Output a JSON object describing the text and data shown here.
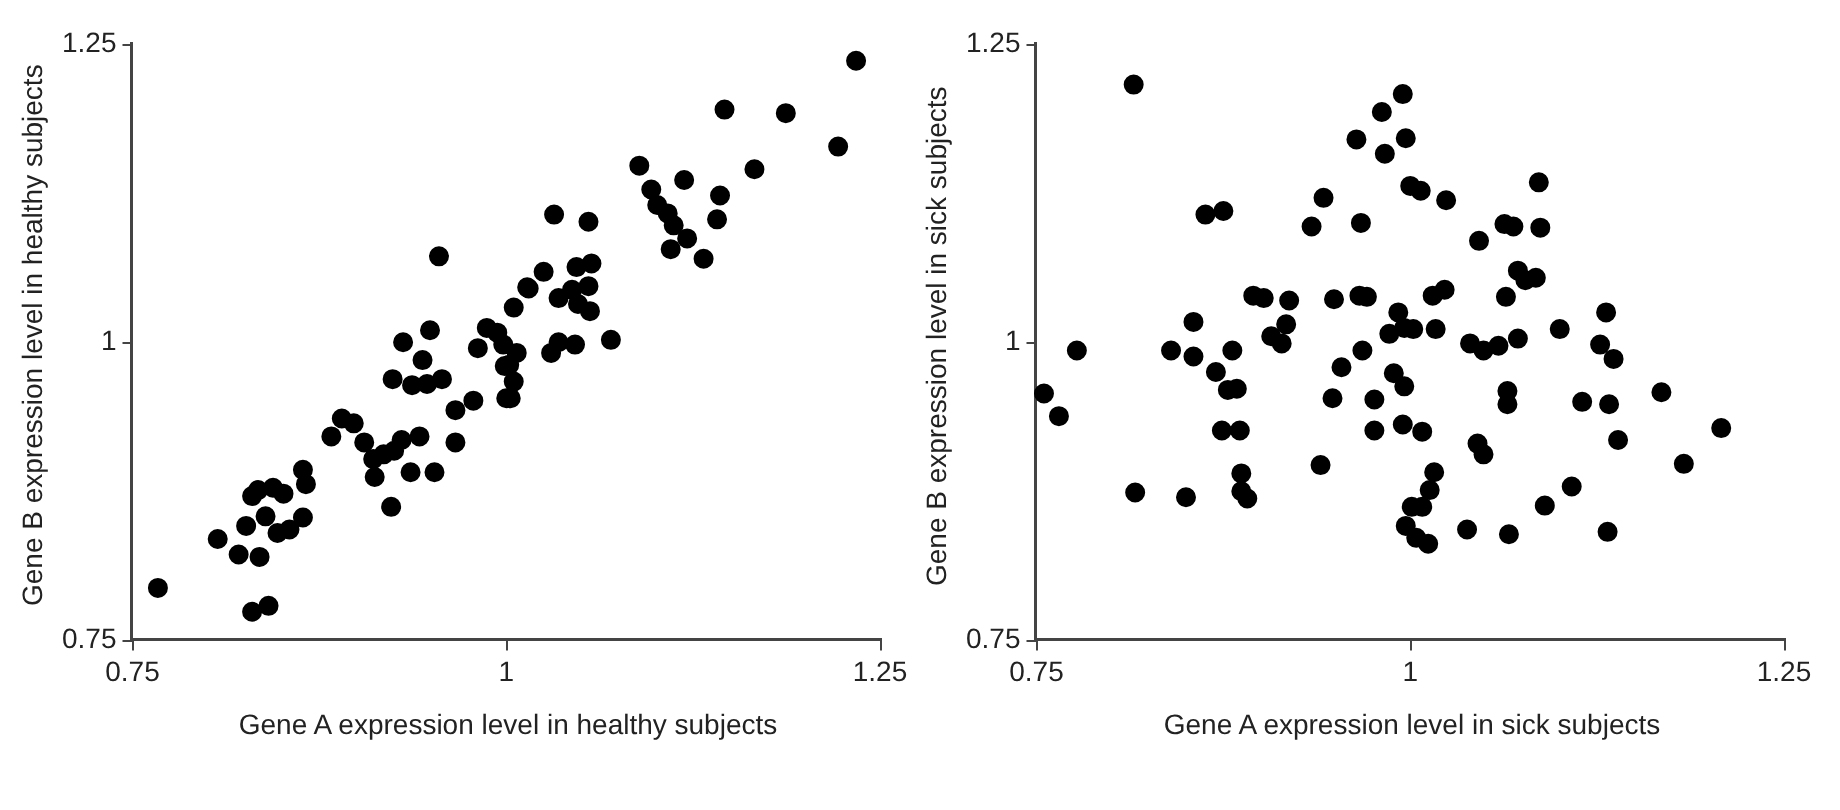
{
  "chart_data": [
    {
      "type": "scatter",
      "xlabel": "Gene A expression level in healthy subjects",
      "ylabel": "Gene B expression level in healthy subjects",
      "xlim": [
        0.75,
        1.25
      ],
      "ylim": [
        0.75,
        1.25
      ],
      "xticks": [
        0.75,
        1,
        1.25
      ],
      "yticks": [
        0.75,
        1,
        1.25
      ],
      "grid": false,
      "legend": false,
      "marker": "circle",
      "series": [
        {
          "color": "#000000",
          "x": [
            0.767,
            0.807,
            0.821,
            0.835,
            0.83,
            0.841,
            0.826,
            0.83,
            0.834,
            0.839,
            0.844,
            0.851,
            0.847,
            0.855,
            0.864,
            0.864,
            0.866,
            0.883,
            0.89,
            0.898,
            0.905,
            0.911,
            0.912,
            0.918,
            0.923,
            0.925,
            0.93,
            0.942,
            0.936,
            0.952,
            0.966,
            0.966,
            0.978,
            0.924,
            0.937,
            0.947,
            0.957,
            0.931,
            0.944,
            0.949,
            0.955,
            0.981,
            0.987,
            1.0,
            0.999,
            1.005,
            1.005,
            1.014,
            1.003,
            1.002,
            1.007,
            0.994,
            0.998,
            1.015,
            1.025,
            1.032,
            1.03,
            1.035,
            1.046,
            1.07,
            1.035,
            1.044,
            1.055,
            1.048,
            1.056,
            1.047,
            1.057,
            1.055,
            1.089,
            1.097,
            1.101,
            1.108,
            1.112,
            1.121,
            1.11,
            1.132,
            1.119,
            1.143,
            1.141,
            1.146,
            1.166,
            1.187,
            1.222,
            1.234
          ],
          "values": [
            0.794,
            0.835,
            0.822,
            0.82,
            0.774,
            0.779,
            0.846,
            0.871,
            0.876,
            0.854,
            0.878,
            0.873,
            0.84,
            0.843,
            0.853,
            0.893,
            0.881,
            0.921,
            0.936,
            0.932,
            0.916,
            0.902,
            0.887,
            0.906,
            0.862,
            0.909,
            0.918,
            0.921,
            0.891,
            0.891,
            0.916,
            0.943,
            0.951,
            0.969,
            0.964,
            0.965,
            0.969,
            1.0,
            0.985,
            1.01,
            1.072,
            0.995,
            1.012,
            0.953,
            0.98,
            1.029,
            0.967,
            1.046,
            0.953,
            0.981,
            0.991,
            1.008,
            0.998,
            1.045,
            1.059,
            1.107,
            0.991,
            1.0,
            0.998,
            1.002,
            1.037,
            1.044,
            1.047,
            1.032,
            1.026,
            1.063,
            1.066,
            1.101,
            1.148,
            1.128,
            1.115,
            1.108,
            1.098,
            1.087,
            1.078,
            1.07,
            1.136,
            1.123,
            1.103,
            1.195,
            1.145,
            1.192,
            1.164,
            1.236
          ]
        }
      ]
    },
    {
      "type": "scatter",
      "xlabel": "Gene A expression level in sick subjects",
      "ylabel": "Gene B expression level in sick subjects",
      "xlim": [
        0.75,
        1.25
      ],
      "ylim": [
        0.75,
        1.25
      ],
      "xticks": [
        0.75,
        1,
        1.25
      ],
      "yticks": [
        0.75,
        1,
        1.25
      ],
      "grid": false,
      "legend": false,
      "marker": "circle",
      "series": [
        {
          "color": "#000000",
          "x": [
            0.815,
            0.755,
            0.765,
            0.777,
            0.816,
            0.85,
            0.84,
            0.855,
            0.855,
            0.863,
            0.875,
            0.87,
            0.881,
            0.878,
            0.884,
            0.874,
            0.886,
            0.887,
            0.887,
            0.891,
            0.895,
            0.902,
            0.919,
            0.907,
            0.914,
            0.917,
            0.94,
            0.934,
            0.942,
            0.949,
            0.954,
            0.948,
            0.964,
            0.967,
            0.966,
            0.971,
            0.968,
            0.976,
            0.976,
            0.981,
            0.983,
            0.986,
            0.989,
            0.996,
            0.995,
            0.995,
            0.997,
            0.992,
            1.0,
            1.007,
            1.024,
            0.996,
            1.002,
            1.017,
            1.015,
            1.023,
            1.008,
            1.016,
            1.013,
            1.001,
            1.008,
            0.997,
            1.004,
            1.012,
            1.038,
            1.066,
            1.09,
            1.108,
            1.132,
            1.183,
            1.208,
            1.168,
            1.139,
            1.133,
            1.115,
            1.065,
            1.065,
            1.045,
            1.049,
            1.04,
            1.049,
            1.059,
            1.072,
            1.1,
            1.127,
            1.136,
            1.131,
            1.064,
            1.072,
            1.077,
            1.084,
            1.046,
            1.063,
            1.069,
            1.087,
            1.086
          ],
          "values": [
            1.216,
            0.957,
            0.938,
            0.993,
            0.874,
            0.87,
            0.993,
            1.017,
            0.988,
            1.107,
            1.11,
            0.975,
            0.993,
            0.96,
            0.961,
            0.926,
            0.926,
            0.89,
            0.875,
            0.869,
            1.039,
            1.037,
            1.035,
            1.005,
            0.999,
            1.015,
            0.897,
            1.097,
            1.121,
            1.036,
            0.979,
            0.953,
            1.17,
            1.1,
            1.039,
            1.038,
            0.993,
            0.952,
            0.926,
            1.193,
            1.158,
            1.007,
            0.974,
            0.963,
            0.931,
            1.208,
            1.171,
            1.025,
            1.131,
            1.127,
            1.119,
            1.012,
            1.011,
            1.011,
            1.039,
            1.044,
            0.925,
            0.891,
            0.876,
            0.862,
            0.862,
            0.846,
            0.836,
            0.831,
            0.843,
            0.839,
            0.863,
            0.879,
            0.841,
            0.898,
            0.928,
            0.958,
            0.918,
            0.948,
            0.95,
            0.959,
            0.948,
            0.915,
            0.906,
            0.999,
            0.993,
            0.997,
            1.003,
            1.011,
            0.998,
            0.986,
            1.025,
            1.038,
            1.06,
            1.052,
            1.054,
            1.085,
            1.099,
            1.097,
            1.096,
            1.134
          ]
        }
      ]
    }
  ]
}
